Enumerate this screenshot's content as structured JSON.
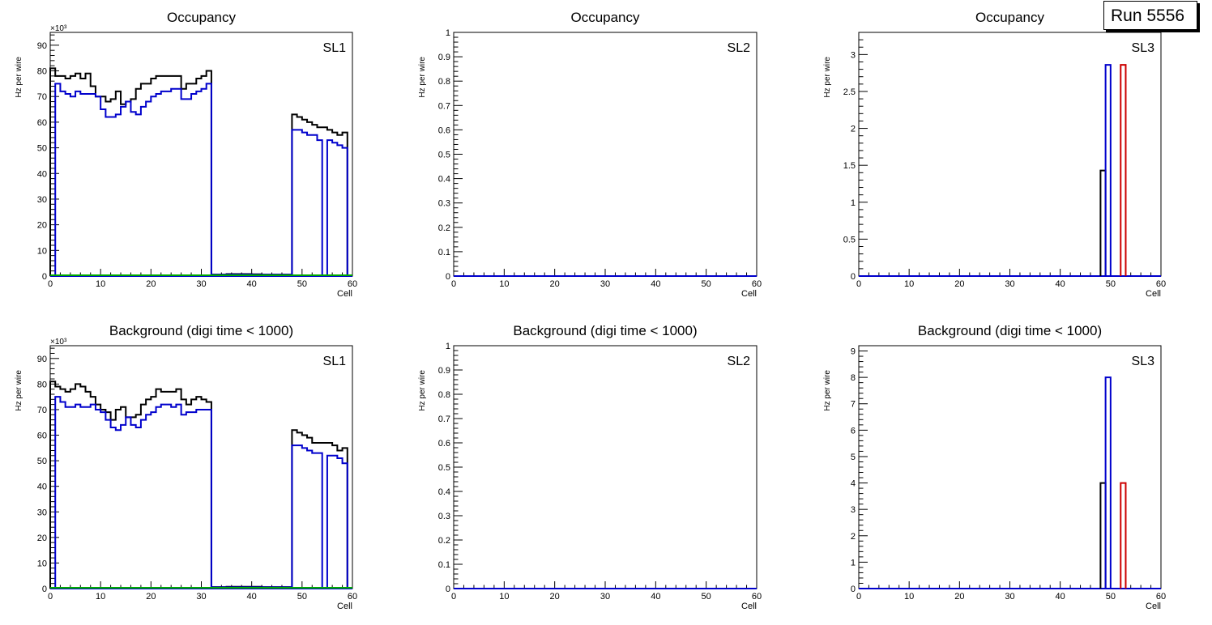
{
  "run_label": "Run 5556",
  "colors": {
    "total": "#000000",
    "series_blue": "#0000cc",
    "series_red": "#cc0000",
    "series_green": "#00aa00",
    "axis": "#000000"
  },
  "chart_data": [
    {
      "id": "occ-sl1",
      "type": "histogram",
      "title": "Occupancy",
      "label": "SL1",
      "xlabel": "Cell",
      "ylabel": "Hz per wire",
      "exponent_label": "×10³",
      "xlim": [
        0,
        60
      ],
      "ylim": [
        0,
        95
      ],
      "x_ticks": [
        0,
        10,
        20,
        30,
        40,
        50,
        60
      ],
      "y_ticks": [
        0,
        10,
        20,
        30,
        40,
        50,
        60,
        70,
        80,
        90
      ],
      "series": [
        {
          "name": "total",
          "color": "#000000",
          "values": [
            81,
            78,
            78,
            77,
            78,
            79,
            77,
            79,
            74,
            70,
            70,
            68,
            69,
            72,
            67,
            68,
            69,
            73,
            75,
            75,
            77,
            78,
            78,
            78,
            78,
            78,
            73,
            75,
            75,
            77,
            78,
            80,
            0.6,
            0.6,
            0.6,
            0.8,
            0.8,
            0.8,
            0.8,
            0.8,
            0.7,
            0.7,
            0.6,
            0.6,
            0.6,
            0.6,
            0.6,
            0.6,
            63,
            62,
            61,
            60,
            59,
            58,
            58,
            57,
            56,
            55,
            56,
            0
          ]
        },
        {
          "name": "blue",
          "color": "#0000cc",
          "values": [
            0,
            75,
            72,
            71,
            70,
            72,
            71,
            71,
            71,
            70,
            65,
            62,
            62,
            63,
            66,
            68,
            64,
            63,
            66,
            68,
            70,
            71,
            72,
            72,
            73,
            73,
            69,
            69,
            71,
            72,
            73,
            75,
            0.5,
            0.5,
            0.5,
            0.6,
            0.6,
            0.6,
            0.6,
            0.6,
            0.5,
            0.5,
            0.5,
            0.5,
            0.5,
            0.5,
            0.5,
            0.5,
            57,
            57,
            56,
            55,
            55,
            53,
            0,
            53,
            52,
            51,
            50,
            0
          ]
        }
      ]
    },
    {
      "id": "occ-sl2",
      "type": "histogram",
      "title": "Occupancy",
      "label": "SL2",
      "xlabel": "Cell",
      "ylabel": "Hz per wire",
      "exponent_label": "",
      "xlim": [
        0,
        60
      ],
      "ylim": [
        0,
        1
      ],
      "x_ticks": [
        0,
        10,
        20,
        30,
        40,
        50,
        60
      ],
      "y_ticks": [
        0,
        0.1,
        0.2,
        0.3,
        0.4,
        0.5,
        0.6,
        0.7,
        0.8,
        0.9,
        1
      ],
      "series": []
    },
    {
      "id": "occ-sl3",
      "type": "histogram",
      "title": "Occupancy",
      "label": "SL3",
      "xlabel": "Cell",
      "ylabel": "Hz per wire",
      "exponent_label": "",
      "xlim": [
        0,
        60
      ],
      "ylim": [
        0,
        3.3
      ],
      "x_ticks": [
        0,
        10,
        20,
        30,
        40,
        50,
        60
      ],
      "y_ticks": [
        0,
        0.5,
        1,
        1.5,
        2,
        2.5,
        3
      ],
      "series": [
        {
          "name": "total",
          "color": "#000000",
          "bins": [
            {
              "x": 48,
              "value": 1.43
            }
          ]
        },
        {
          "name": "blue",
          "color": "#0000cc",
          "bins": [
            {
              "x": 49,
              "value": 2.86
            }
          ]
        },
        {
          "name": "red",
          "color": "#cc0000",
          "bins": [
            {
              "x": 52,
              "value": 2.86
            }
          ]
        }
      ]
    },
    {
      "id": "bkg-sl1",
      "type": "histogram",
      "title": "Background (digi time < 1000)",
      "label": "SL1",
      "xlabel": "Cell",
      "ylabel": "Hz per wire",
      "exponent_label": "×10³",
      "xlim": [
        0,
        60
      ],
      "ylim": [
        0,
        95
      ],
      "x_ticks": [
        0,
        10,
        20,
        30,
        40,
        50,
        60
      ],
      "y_ticks": [
        0,
        10,
        20,
        30,
        40,
        50,
        60,
        70,
        80,
        90
      ],
      "series": [
        {
          "name": "total",
          "color": "#000000",
          "values": [
            81,
            79,
            78,
            77,
            78,
            80,
            79,
            77,
            75,
            72,
            70,
            69,
            66,
            70,
            71,
            67,
            67,
            68,
            72,
            74,
            75,
            78,
            77,
            77,
            77,
            78,
            74,
            72,
            74,
            75,
            74,
            73,
            0.6,
            0.6,
            0.6,
            0.7,
            0.7,
            0.7,
            0.7,
            0.7,
            0.7,
            0.7,
            0.6,
            0.6,
            0.6,
            0.6,
            0.6,
            0.6,
            62,
            61,
            60,
            59,
            57,
            57,
            57,
            57,
            56,
            54,
            55,
            0
          ]
        },
        {
          "name": "blue",
          "color": "#0000cc",
          "values": [
            0,
            75,
            73,
            71,
            71,
            72,
            71,
            71,
            72,
            70,
            69,
            66,
            63,
            62,
            64,
            67,
            64,
            63,
            66,
            68,
            69,
            71,
            72,
            72,
            71,
            72,
            68,
            69,
            69,
            70,
            70,
            70,
            0.5,
            0.5,
            0.5,
            0.5,
            0.5,
            0.5,
            0.5,
            0.5,
            0.5,
            0.5,
            0.5,
            0.5,
            0.5,
            0.5,
            0.5,
            0.5,
            56,
            56,
            55,
            54,
            53,
            53,
            0,
            52,
            52,
            51,
            49,
            0
          ]
        }
      ]
    },
    {
      "id": "bkg-sl2",
      "type": "histogram",
      "title": "Background (digi time < 1000)",
      "label": "SL2",
      "xlabel": "Cell",
      "ylabel": "Hz per wire",
      "exponent_label": "",
      "xlim": [
        0,
        60
      ],
      "ylim": [
        0,
        1
      ],
      "x_ticks": [
        0,
        10,
        20,
        30,
        40,
        50,
        60
      ],
      "y_ticks": [
        0,
        0.1,
        0.2,
        0.3,
        0.4,
        0.5,
        0.6,
        0.7,
        0.8,
        0.9,
        1
      ],
      "series": []
    },
    {
      "id": "bkg-sl3",
      "type": "histogram",
      "title": "Background (digi time < 1000)",
      "label": "SL3",
      "xlabel": "Cell",
      "ylabel": "Hz per wire",
      "exponent_label": "",
      "xlim": [
        0,
        60
      ],
      "ylim": [
        0,
        9.2
      ],
      "x_ticks": [
        0,
        10,
        20,
        30,
        40,
        50,
        60
      ],
      "y_ticks": [
        0,
        1,
        2,
        3,
        4,
        5,
        6,
        7,
        8,
        9
      ],
      "series": [
        {
          "name": "total",
          "color": "#000000",
          "bins": [
            {
              "x": 48,
              "value": 4
            }
          ]
        },
        {
          "name": "blue",
          "color": "#0000cc",
          "bins": [
            {
              "x": 49,
              "value": 8
            }
          ]
        },
        {
          "name": "red",
          "color": "#cc0000",
          "bins": [
            {
              "x": 52,
              "value": 4
            }
          ]
        }
      ]
    }
  ]
}
